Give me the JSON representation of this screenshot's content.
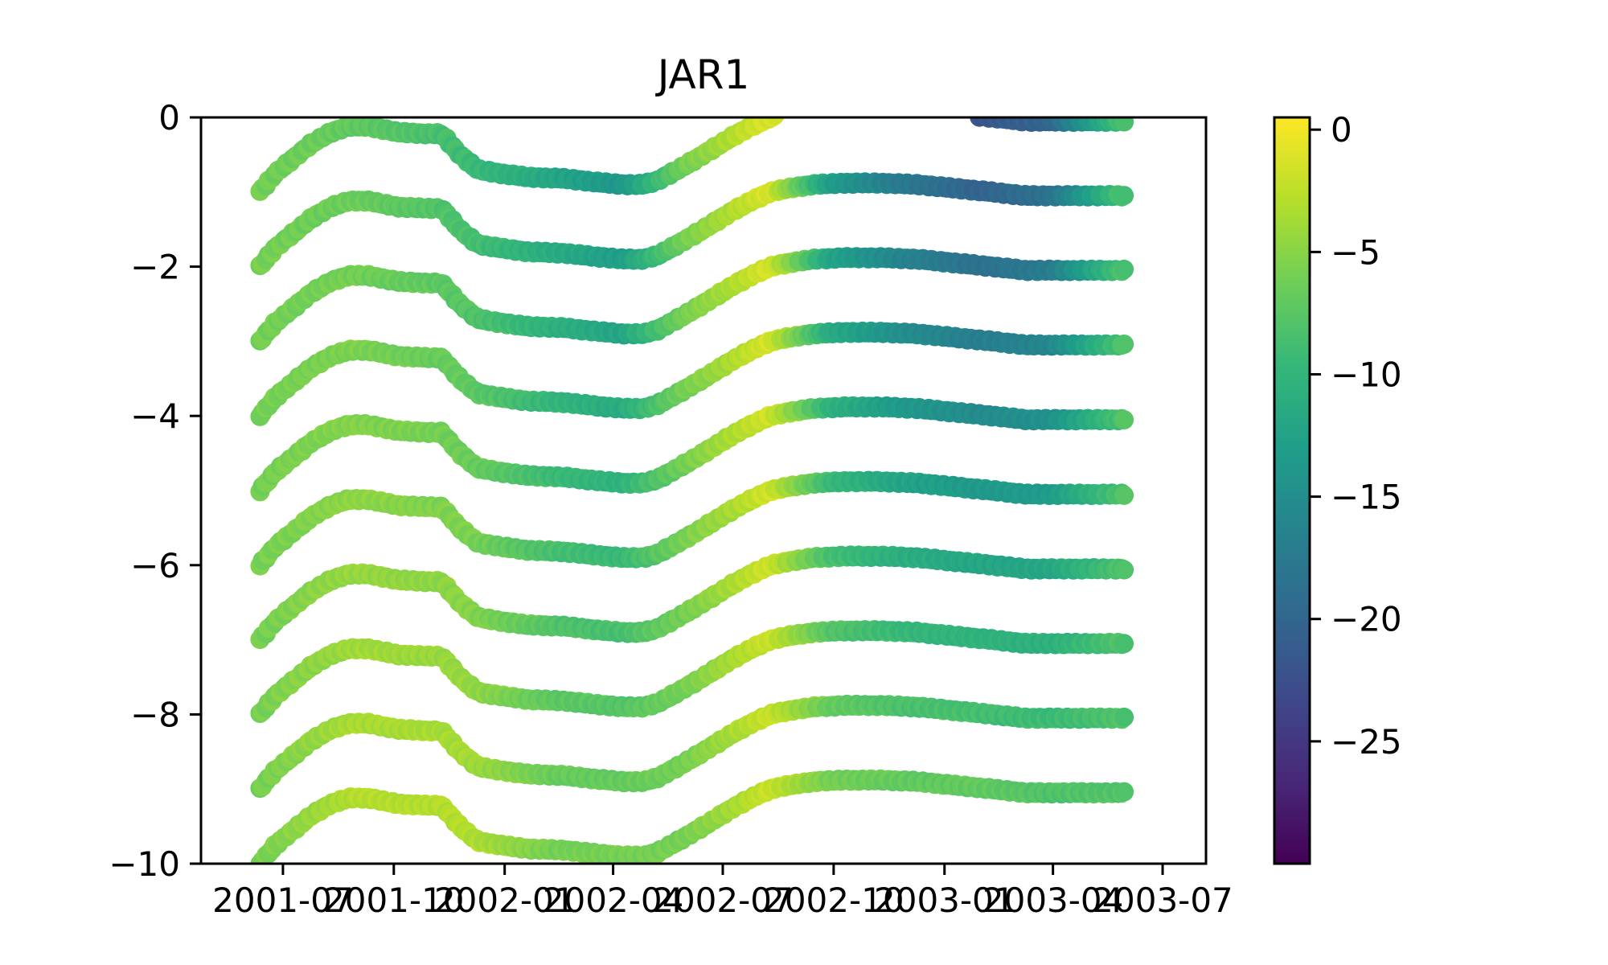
{
  "chart_data": {
    "type": "scatter",
    "title": "JAR1",
    "xlabel": "",
    "ylabel": "",
    "xlim": [
      "2001-04-24",
      "2003-08-06"
    ],
    "ylim": [
      -10,
      0
    ],
    "grid": false,
    "legend": "none",
    "x_tick_labels": [
      "2001-07",
      "2001-10",
      "2002-01",
      "2002-04",
      "2002-07",
      "2002-10",
      "2003-01",
      "2003-04",
      "2003-07"
    ],
    "y_tick_labels": [
      "0",
      "−2",
      "−4",
      "−6",
      "−8",
      "−10"
    ],
    "colorbar": {
      "cmap": "viridis",
      "range": [
        -30,
        0.5
      ],
      "tick_values": [
        0,
        -5,
        -10,
        -15,
        -20,
        -25
      ],
      "tick_labels": [
        "0",
        "−5",
        "−10",
        "−15",
        "−20",
        "−25"
      ],
      "colors": [
        "#440154",
        "#482878",
        "#3e4989",
        "#31688e",
        "#26828e",
        "#1f9e89",
        "#35b779",
        "#6ece58",
        "#b5de2b",
        "#fde725"
      ]
    },
    "series_depth_offsets": [
      0,
      -1,
      -2,
      -3,
      -4,
      -5,
      -6,
      -7,
      -8,
      -9
    ],
    "series_top_first": [
      0,
      0,
      -1,
      -2,
      -3,
      -4,
      -5,
      -6,
      -7,
      -8
    ],
    "profile_shape": {
      "x": [
        "2001-06-12",
        "2001-06-25",
        "2001-07-10",
        "2001-07-25",
        "2001-08-10",
        "2001-08-25",
        "2001-09-10",
        "2001-10-05",
        "2001-10-30",
        "2001-11-10",
        "2001-11-25",
        "2001-12-10",
        "2001-12-28",
        "2002-01-20",
        "2002-02-20",
        "2002-03-20",
        "2002-04-10",
        "2002-04-26",
        "2002-05-08",
        "2002-05-25",
        "2002-06-10",
        "2002-06-25",
        "2002-07-10",
        "2002-07-25",
        "2002-08-10",
        "2002-08-25",
        "2002-09-15",
        "2002-10-10",
        "2002-11-10",
        "2002-12-10",
        "2003-01-10",
        "2003-02-10",
        "2003-03-10",
        "2003-04-10",
        "2003-05-10",
        "2003-06-01"
      ],
      "y": [
        -1.0,
        -0.75,
        -0.55,
        -0.35,
        -0.2,
        -0.12,
        -0.12,
        -0.2,
        -0.22,
        -0.22,
        -0.5,
        -0.7,
        -0.75,
        -0.8,
        -0.82,
        -0.87,
        -0.9,
        -0.9,
        -0.85,
        -0.7,
        -0.55,
        -0.4,
        -0.25,
        -0.12,
        0.0,
        0.05,
        0.1,
        0.12,
        0.12,
        0.1,
        0.05,
        0.0,
        -0.05,
        -0.05,
        -0.05,
        -0.05
      ]
    },
    "layer_temperature": {
      "x": [
        "2001-06-12",
        "2001-09-01",
        "2001-12-01",
        "2002-02-15",
        "2002-04-10",
        "2002-06-01",
        "2002-08-10",
        "2002-10-01",
        "2002-12-01",
        "2003-02-01",
        "2003-04-01",
        "2003-06-01"
      ],
      "top_layer_y": [
        -6,
        -7,
        -9,
        -12,
        -14,
        -6,
        -1,
        -14,
        -19,
        -22,
        -20,
        -8
      ],
      "deep_layer_y": [
        -6,
        -3,
        -3,
        -6,
        -6,
        -6,
        -2,
        -6,
        -7,
        -7,
        -8,
        -8
      ]
    }
  }
}
